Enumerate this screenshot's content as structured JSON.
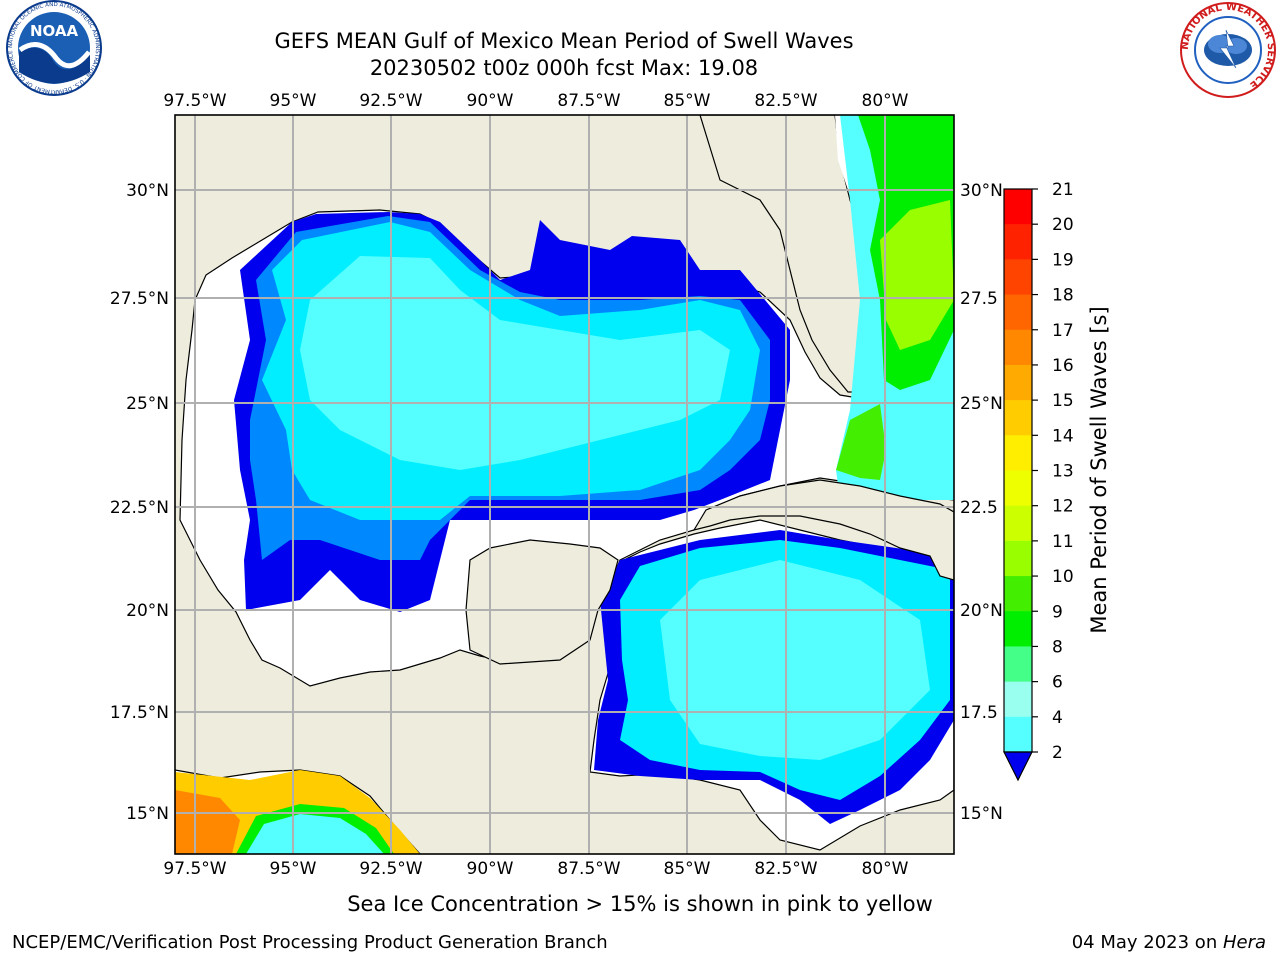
{
  "title": {
    "line1": "GEFS MEAN Gulf of Mexico Mean Period of Swell Waves",
    "line2": "20230502 t00z 000h fcst   Max: 19.08"
  },
  "map": {
    "lon_ticks": [
      "97.5°W",
      "95°W",
      "92.5°W",
      "90°W",
      "87.5°W",
      "85°W",
      "82.5°W",
      "80°W"
    ],
    "lat_ticks_left": [
      "30°N",
      "27.5°N",
      "25°N",
      "22.5°N",
      "20°N",
      "17.5°N",
      "15°N"
    ],
    "lat_ticks_right": [
      "30°N",
      "27.5",
      "25°N",
      "22.5",
      "20°N",
      "17.5",
      "15°N"
    ],
    "land_color": "#eeeddd",
    "grid_color": "#b0b0b0"
  },
  "colorbar": {
    "label": "Mean Period of Swell Waves [s]",
    "ticks": [
      "21",
      "20",
      "19",
      "18",
      "17",
      "16",
      "15",
      "14",
      "13",
      "12",
      "11",
      "10",
      "9",
      "8",
      "6",
      "4",
      "2"
    ],
    "colors_top_to_bottom": [
      "#ff0000",
      "#ff2200",
      "#ff4400",
      "#ff6600",
      "#ff8800",
      "#ffaa00",
      "#ffcc00",
      "#ffee00",
      "#eeff00",
      "#ccff00",
      "#99ff00",
      "#44ee00",
      "#00ee00",
      "#44ff88",
      "#99ffee",
      "#55ffff",
      "#00eeff",
      "#0088ff",
      "#0000ee"
    ]
  },
  "logos": {
    "noaa_text": "NOAA",
    "noaa_ring": "NATIONAL OCEANIC AND ATMOSPHERIC ADMINISTRATION · U.S. DEPARTMENT OF COMMERCE",
    "nws_ring": "NATIONAL WEATHER SERVICE"
  },
  "subtitle": "Sea Ice Concentration > 15% is shown in pink to yellow",
  "footer": {
    "left": "NCEP/EMC/Verification Post Processing Product Generation Branch",
    "date": "04 May 2023 on ",
    "host": "Hera"
  }
}
